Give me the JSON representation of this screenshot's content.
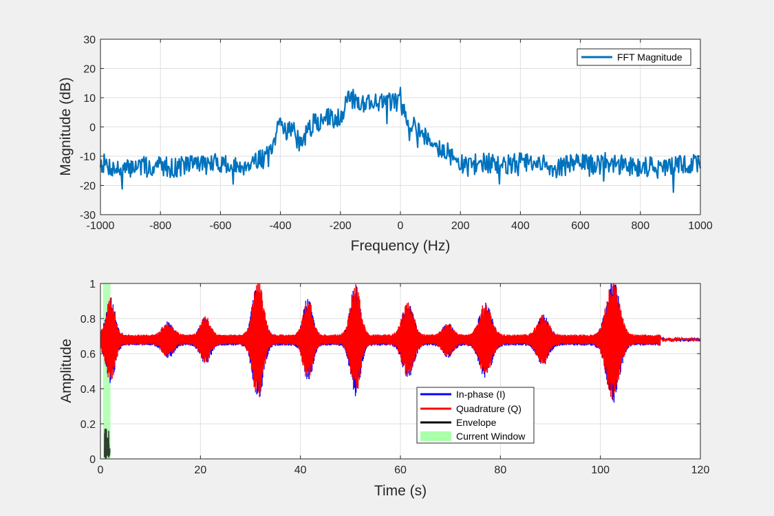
{
  "figure": {
    "background": "#f0f0f0"
  },
  "chart_data": [
    {
      "type": "line",
      "title": "",
      "xlabel": "Frequency (Hz)",
      "ylabel": "Magnitude (dB)",
      "xlim": [
        -1000,
        1000
      ],
      "ylim": [
        -30,
        30
      ],
      "xticks": [
        -1000,
        -800,
        -600,
        -400,
        -200,
        0,
        200,
        400,
        600,
        800,
        1000
      ],
      "yticks": [
        -30,
        -20,
        -10,
        0,
        10,
        20,
        30
      ],
      "grid": true,
      "legend": {
        "placement": "top-right",
        "entries": [
          "FFT Magnitude"
        ]
      },
      "series": [
        {
          "name": "FFT Magnitude",
          "color": "#0072bd",
          "x": [
            -1000,
            -960,
            -920,
            -880,
            -840,
            -800,
            -760,
            -720,
            -680,
            -640,
            -600,
            -560,
            -520,
            -480,
            -460,
            -440,
            -420,
            -405,
            -395,
            -380,
            -360,
            -345,
            -335,
            -320,
            -300,
            -280,
            -260,
            -240,
            -220,
            -200,
            -185,
            -175,
            -165,
            -150,
            -130,
            -110,
            -90,
            -70,
            -50,
            -30,
            -10,
            0,
            10,
            25,
            40,
            60,
            80,
            100,
            120,
            140,
            160,
            180,
            200,
            240,
            280,
            320,
            360,
            400,
            440,
            480,
            520,
            560,
            600,
            640,
            680,
            720,
            760,
            800,
            840,
            880,
            920,
            960,
            1000
          ],
          "y": [
            -12,
            -14,
            -15,
            -13,
            -14,
            -13,
            -14,
            -13,
            -12,
            -13,
            -12,
            -14,
            -13,
            -11,
            -11,
            -10,
            -7,
            2,
            1,
            -1,
            0,
            -4,
            -6,
            -4,
            0,
            2,
            2,
            3,
            3,
            4,
            6,
            11,
            10,
            9,
            8,
            9,
            8,
            9,
            9,
            8,
            9,
            10,
            6,
            3,
            1,
            0,
            -3,
            -4,
            -6,
            -8,
            -9,
            -11,
            -13,
            -13,
            -12,
            -13,
            -13,
            -12,
            -13,
            -13,
            -14,
            -13,
            -12,
            -13,
            -12,
            -13,
            -13,
            -14,
            -13,
            -14,
            -13,
            -13,
            -12
          ],
          "noise_amplitude": 3.5
        }
      ]
    },
    {
      "type": "line",
      "title": "",
      "xlabel": "Time (s)",
      "ylabel": "Amplitude",
      "xlim": [
        0,
        120
      ],
      "ylim": [
        0,
        1
      ],
      "xticks": [
        0,
        20,
        40,
        60,
        80,
        100,
        120
      ],
      "yticks": [
        0,
        0.2,
        0.4,
        0.6,
        0.8,
        1
      ],
      "grid": true,
      "legend": {
        "placement": "bottom-center",
        "entries": [
          "In-phase (I)",
          "Quadrature (Q)",
          "Envelope",
          "Current Window"
        ]
      },
      "baseline": 0.68,
      "base_swing": 0.03,
      "bursts": [
        {
          "t": 2,
          "amp": 0.22,
          "width": 1.3
        },
        {
          "t": 13.5,
          "amp": 0.08,
          "width": 1.5
        },
        {
          "t": 21,
          "amp": 0.11,
          "width": 1.4
        },
        {
          "t": 31.5,
          "amp": 0.32,
          "width": 1.5
        },
        {
          "t": 41.5,
          "amp": 0.22,
          "width": 1.3
        },
        {
          "t": 51,
          "amp": 0.3,
          "width": 1.4
        },
        {
          "t": 61.5,
          "amp": 0.19,
          "width": 1.6
        },
        {
          "t": 69.5,
          "amp": 0.07,
          "width": 1.5
        },
        {
          "t": 77,
          "amp": 0.19,
          "width": 1.7
        },
        {
          "t": 88.5,
          "amp": 0.12,
          "width": 1.6
        },
        {
          "t": 102.5,
          "amp": 0.33,
          "width": 1.8
        }
      ],
      "series": [
        {
          "name": "In-phase (I)",
          "color": "#0000ff"
        },
        {
          "name": "Quadrature (Q)",
          "color": "#ff0000"
        },
        {
          "name": "Envelope",
          "color": "#000000",
          "x_range": [
            0.8,
            1.9
          ],
          "y_max": 0.2
        },
        {
          "name": "Current Window",
          "color": "#aaffaa",
          "x_range": [
            0.5,
            2.0
          ],
          "y_range": [
            0,
            1
          ]
        }
      ]
    }
  ]
}
